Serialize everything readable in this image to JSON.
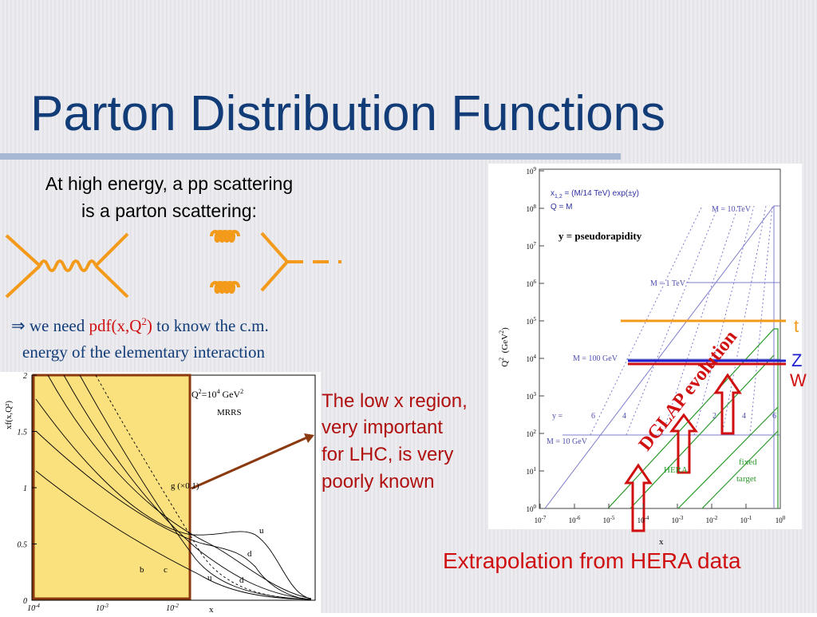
{
  "title": "Parton Distribution Functions",
  "intro": [
    "At high energy, a pp scattering",
    "is a parton scattering:"
  ],
  "need": {
    "arrow": "⇒",
    "pre": " we need ",
    "pdf": "pdf(x,Q",
    "sup": "2",
    "close": ")",
    "post": " to know the c.m.",
    "line2": "energy of the elementary interaction"
  },
  "lowx": [
    "The low x region,",
    "very important",
    "for LHC, is very",
    "poorly known"
  ],
  "left_plot": {
    "q_label": {
      "q": "Q",
      "sup": "2",
      "eq": "=10",
      "exp": "4",
      "unit": " GeV",
      "unit_sup": "2"
    },
    "model": "MRRS",
    "ylabel": "xf(x,Q²)",
    "xlabel": "x",
    "curve_labels": [
      "g (×0.1)",
      "u",
      "d",
      "b",
      "c",
      "u",
      "d"
    ],
    "yticks": [
      "2",
      "1.5",
      "1",
      "0.5",
      "0"
    ],
    "xticks": [
      {
        "base": "10",
        "exp": "-4"
      },
      {
        "base": "10",
        "exp": "-3"
      },
      {
        "base": "10",
        "exp": "-2"
      }
    ]
  },
  "right_plot": {
    "formula": {
      "x": "x",
      "sub": "1,2",
      "rest": " = (M/14 TeV) exp(±y)"
    },
    "q_eq": "Q = M",
    "pseudo": "y = pseudorapidity",
    "masses": [
      "M = 10 TeV",
      "M = 1 TeV",
      "M = 100 GeV",
      "M = 10 GeV"
    ],
    "y_label": "y =",
    "y_values": [
      "6",
      "4",
      "2",
      "4",
      "6"
    ],
    "hera": "HERA",
    "fixed": [
      "fixed",
      "target"
    ],
    "ylabel": {
      "q": "Q",
      "sup": "2",
      "unit": "  (GeV",
      "unit_sup": "2",
      "close": ")"
    },
    "xlabel": "x",
    "yticks": [
      {
        "base": "10",
        "exp": "9"
      },
      {
        "base": "10",
        "exp": "8"
      },
      {
        "base": "10",
        "exp": "7"
      },
      {
        "base": "10",
        "exp": "6"
      },
      {
        "base": "10",
        "exp": "5"
      },
      {
        "base": "10",
        "exp": "4"
      },
      {
        "base": "10",
        "exp": "3"
      },
      {
        "base": "10",
        "exp": "2"
      },
      {
        "base": "10",
        "exp": "1"
      },
      {
        "base": "10",
        "exp": "0"
      }
    ],
    "xticks": [
      {
        "base": "10",
        "exp": "-7"
      },
      {
        "base": "10",
        "exp": "-6"
      },
      {
        "base": "10",
        "exp": "-5"
      },
      {
        "base": "10",
        "exp": "-4"
      },
      {
        "base": "10",
        "exp": "-3"
      },
      {
        "base": "10",
        "exp": "-2"
      },
      {
        "base": "10",
        "exp": "-1"
      },
      {
        "base": "10",
        "exp": "0"
      }
    ]
  },
  "markers": {
    "t": "t",
    "Z": "Z",
    "W": "W"
  },
  "dglap": "DGLAP evolution",
  "extrapolation": "Extrapolation from HERA data"
}
